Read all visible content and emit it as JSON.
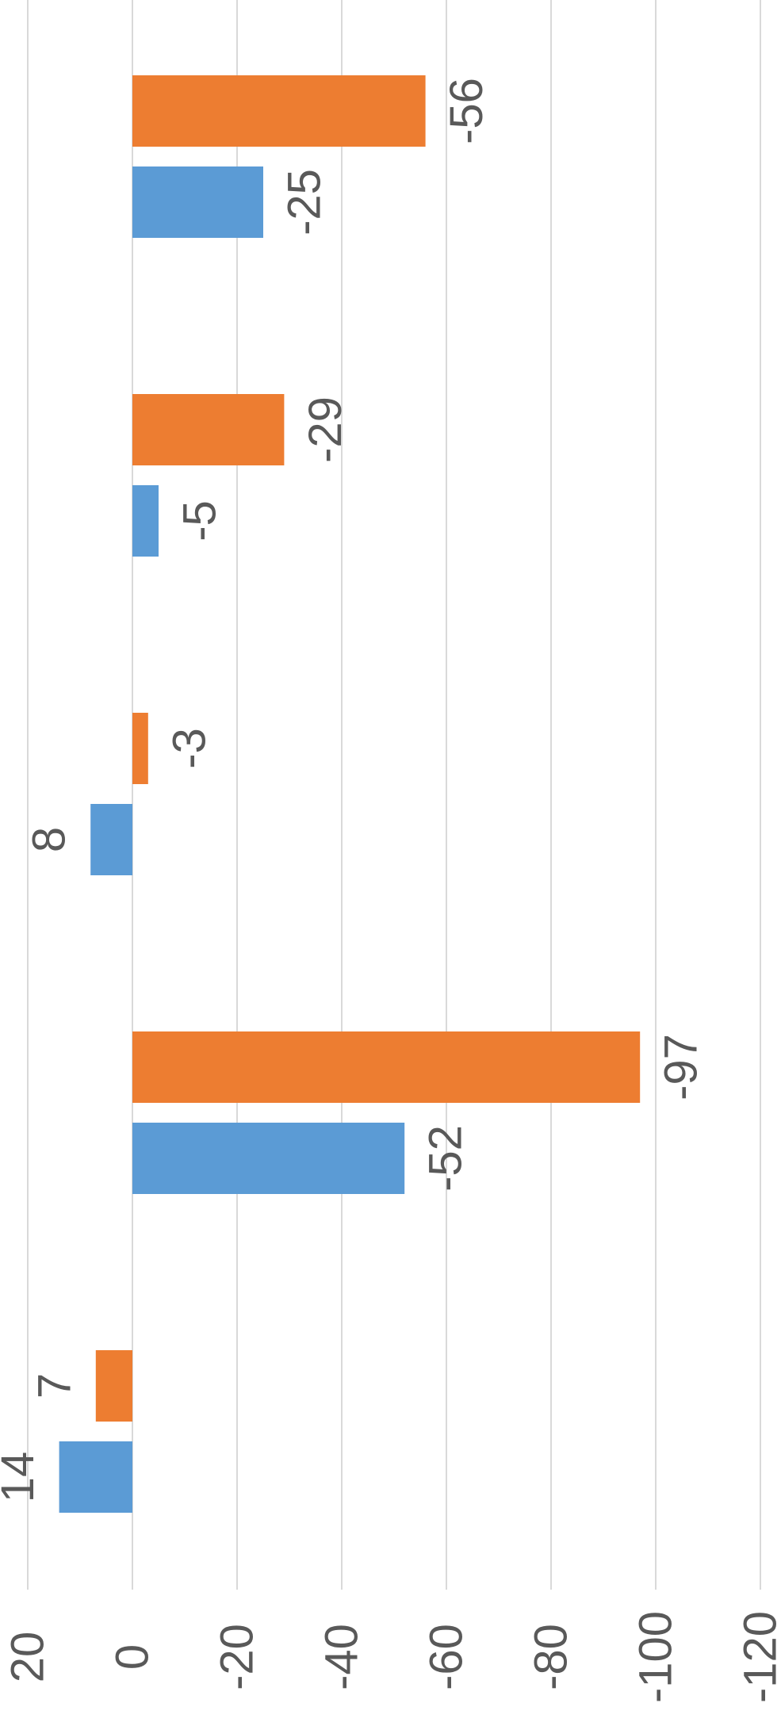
{
  "chart_data": {
    "type": "bar",
    "orientation": "horizontal",
    "categories": [
      "",
      "",
      "",
      "",
      ""
    ],
    "series": [
      {
        "color": "#5b9bd5",
        "values": [
          14,
          -52,
          8,
          -5,
          -25
        ]
      },
      {
        "color": "#ed7d31",
        "values": [
          7,
          -97,
          -3,
          -29,
          -56
        ]
      }
    ],
    "title": "",
    "xlabel": "",
    "ylabel": "",
    "xlim": [
      20,
      -120
    ],
    "ticks": [
      20,
      0,
      -20,
      -40,
      -60,
      -80,
      -100,
      -120
    ],
    "tick_labels": [
      "20",
      "0",
      "-20",
      "-40",
      "-60",
      "-80",
      "-100",
      "-120"
    ],
    "data_labels": [
      [
        "14",
        "-52",
        "8",
        "-5",
        "-25"
      ],
      [
        "7",
        "-97",
        "-3",
        "-29",
        "-56"
      ]
    ],
    "grid": true,
    "legend": "none",
    "rotation": "chart rotated 90 degrees clockwise"
  }
}
